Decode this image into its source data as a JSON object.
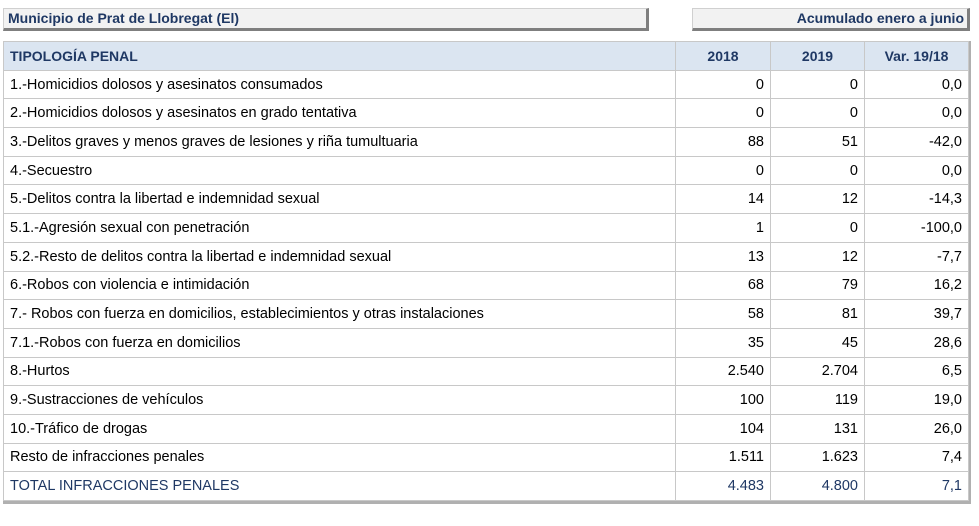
{
  "header": {
    "municipio": "Municipio de Prat de Llobregat (El)",
    "periodo": "Acumulado enero a junio"
  },
  "table": {
    "columns": [
      "TIPOLOGÍA PENAL",
      "2018",
      "2019",
      "Var. 19/18"
    ],
    "rows": [
      {
        "label": "1.-Homicidios dolosos y asesinatos consumados",
        "v2018": "0",
        "v2019": "0",
        "var": "0,0"
      },
      {
        "label": "2.-Homicidios dolosos y asesinatos en grado tentativa",
        "v2018": "0",
        "v2019": "0",
        "var": "0,0"
      },
      {
        "label": "3.-Delitos graves y menos graves de lesiones y riña tumultuaria",
        "v2018": "88",
        "v2019": "51",
        "var": "-42,0"
      },
      {
        "label": "4.-Secuestro",
        "v2018": "0",
        "v2019": "0",
        "var": "0,0"
      },
      {
        "label": "5.-Delitos contra la libertad e indemnidad sexual",
        "v2018": "14",
        "v2019": "12",
        "var": "-14,3"
      },
      {
        "label": "5.1.-Agresión sexual con penetración",
        "v2018": "1",
        "v2019": "0",
        "var": "-100,0"
      },
      {
        "label": "5.2.-Resto de delitos contra la libertad e indemnidad sexual",
        "v2018": "13",
        "v2019": "12",
        "var": "-7,7"
      },
      {
        "label": "6.-Robos con violencia e intimidación",
        "v2018": "68",
        "v2019": "79",
        "var": "16,2"
      },
      {
        "label": "7.- Robos con fuerza en domicilios, establecimientos y otras instalaciones",
        "v2018": "58",
        "v2019": "81",
        "var": "39,7"
      },
      {
        "label": "7.1.-Robos con fuerza en domicilios",
        "v2018": "35",
        "v2019": "45",
        "var": "28,6"
      },
      {
        "label": "8.-Hurtos",
        "v2018": "2.540",
        "v2019": "2.704",
        "var": "6,5"
      },
      {
        "label": "9.-Sustracciones de vehículos",
        "v2018": "100",
        "v2019": "119",
        "var": "19,0"
      },
      {
        "label": "10.-Tráfico de drogas",
        "v2018": "104",
        "v2019": "131",
        "var": "26,0"
      },
      {
        "label": "Resto de infracciones penales",
        "v2018": "1.511",
        "v2019": "1.623",
        "var": "7,4"
      }
    ],
    "total": {
      "label": "TOTAL INFRACCIONES PENALES",
      "v2018": "4.483",
      "v2019": "4.800",
      "var": "7,1"
    }
  },
  "colors": {
    "title_text": "#1f3864",
    "header_fill": "#dbe5f1",
    "box_fill": "#f2f2f2"
  }
}
